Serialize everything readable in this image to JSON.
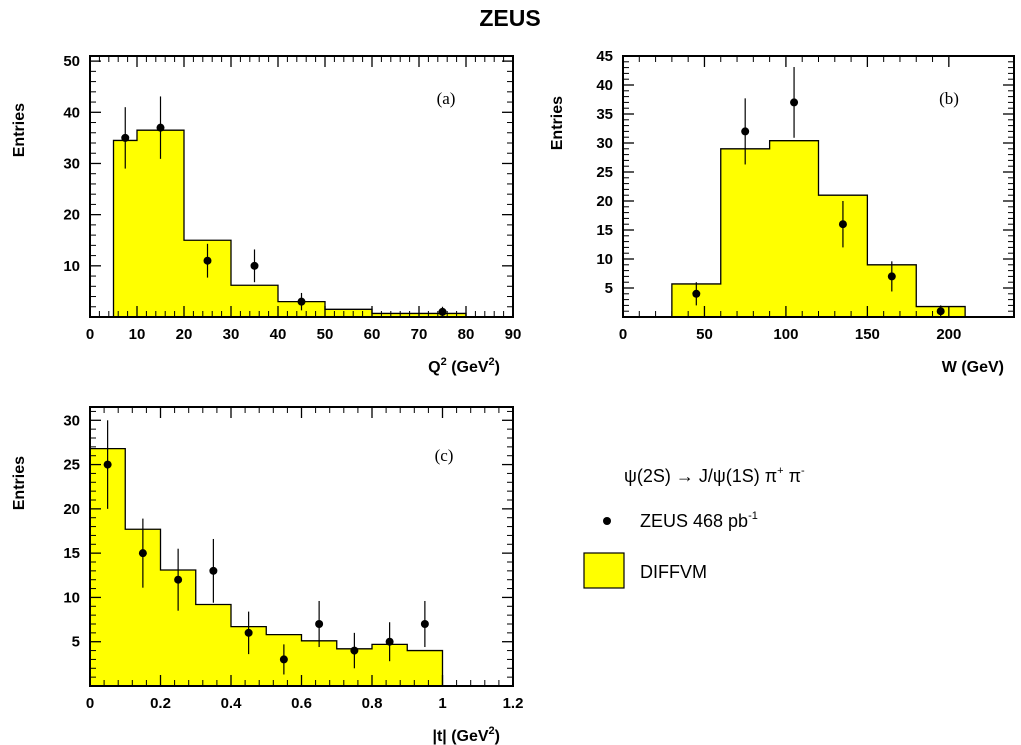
{
  "title": "ZEUS",
  "legend": {
    "process": {
      "psi": "ψ",
      "s1": "(2S) ",
      "arrow": "→",
      "s2": " J/ψ(1S) π",
      "plus": "+",
      "s3": " π",
      "minus": "-"
    },
    "data": {
      "text": "ZEUS 468 pb",
      "sup": "-1"
    },
    "mc": {
      "text": "DIFFVM"
    }
  },
  "colors": {
    "mc_fill": "#ffff00",
    "line": "#000000",
    "background": "#ffffff"
  },
  "chart_data": [
    {
      "type": "bar",
      "panel": "(a)",
      "xlabel": {
        "base": "Q",
        "sup1": "2",
        "mid": " (GeV",
        "sup2": "2",
        "end": ")"
      },
      "ylabel": "Entries",
      "xlim": [
        0,
        90
      ],
      "ylim": [
        0,
        51
      ],
      "xticks": [
        0,
        10,
        20,
        30,
        40,
        50,
        60,
        70,
        80,
        90
      ],
      "yticks": [
        10,
        20,
        30,
        40,
        50
      ],
      "mc_edges": [
        5,
        10,
        20,
        30,
        40,
        50,
        60,
        80
      ],
      "mc_values": [
        34.5,
        36.5,
        15,
        6.2,
        3,
        1.5,
        0.7
      ],
      "data_points": [
        {
          "x": 7.5,
          "y": 35,
          "err": 6
        },
        {
          "x": 15,
          "y": 37,
          "err": 6.1
        },
        {
          "x": 25,
          "y": 11,
          "err": 3.3
        },
        {
          "x": 35,
          "y": 10,
          "err": 3.2
        },
        {
          "x": 45,
          "y": 3,
          "err": 1.7
        },
        {
          "x": 75,
          "y": 1,
          "err": 1
        }
      ]
    },
    {
      "type": "bar",
      "panel": "(b)",
      "xlabel": {
        "base": "W (GeV)"
      },
      "ylabel": "Entries",
      "xlim": [
        0,
        240
      ],
      "ylim": [
        0,
        45
      ],
      "xticks": [
        0,
        50,
        100,
        150,
        200
      ],
      "yticks": [
        5,
        10,
        15,
        20,
        25,
        30,
        35,
        40,
        45
      ],
      "mc_edges": [
        30,
        60,
        90,
        120,
        150,
        180,
        210
      ],
      "mc_values": [
        5.7,
        29,
        30.4,
        21,
        9,
        1.8
      ],
      "data_points": [
        {
          "x": 45,
          "y": 4,
          "err": 2
        },
        {
          "x": 75,
          "y": 32,
          "err": 5.7
        },
        {
          "x": 105,
          "y": 37,
          "err": 6.1
        },
        {
          "x": 135,
          "y": 16,
          "err": 4
        },
        {
          "x": 165,
          "y": 7,
          "err": 2.6
        },
        {
          "x": 195,
          "y": 1,
          "err": 1
        }
      ]
    },
    {
      "type": "bar",
      "panel": "(c)",
      "xlabel": {
        "base": "|t| (GeV",
        "sup1": "2",
        "end": ")"
      },
      "ylabel": "Entries",
      "xlim": [
        0,
        1.2
      ],
      "ylim": [
        0,
        31.5
      ],
      "xticks": [
        0,
        0.2,
        0.4,
        0.6,
        0.8,
        1,
        1.2
      ],
      "yticks": [
        5,
        10,
        15,
        20,
        25,
        30
      ],
      "mc_edges": [
        0,
        0.1,
        0.2,
        0.3,
        0.4,
        0.5,
        0.6,
        0.7,
        0.8,
        0.9,
        1.0
      ],
      "mc_values": [
        26.8,
        17.7,
        13.1,
        9.2,
        6.7,
        5.8,
        5.1,
        4.2,
        4.7,
        4
      ],
      "data_points": [
        {
          "x": 0.05,
          "y": 25,
          "err": 5
        },
        {
          "x": 0.15,
          "y": 15,
          "err": 3.9
        },
        {
          "x": 0.25,
          "y": 12,
          "err": 3.5
        },
        {
          "x": 0.35,
          "y": 13,
          "err": 3.6
        },
        {
          "x": 0.45,
          "y": 6,
          "err": 2.4
        },
        {
          "x": 0.55,
          "y": 3,
          "err": 1.7
        },
        {
          "x": 0.65,
          "y": 7,
          "err": 2.6
        },
        {
          "x": 0.75,
          "y": 4,
          "err": 2
        },
        {
          "x": 0.85,
          "y": 5,
          "err": 2.2
        },
        {
          "x": 0.95,
          "y": 7,
          "err": 2.6
        }
      ]
    }
  ]
}
